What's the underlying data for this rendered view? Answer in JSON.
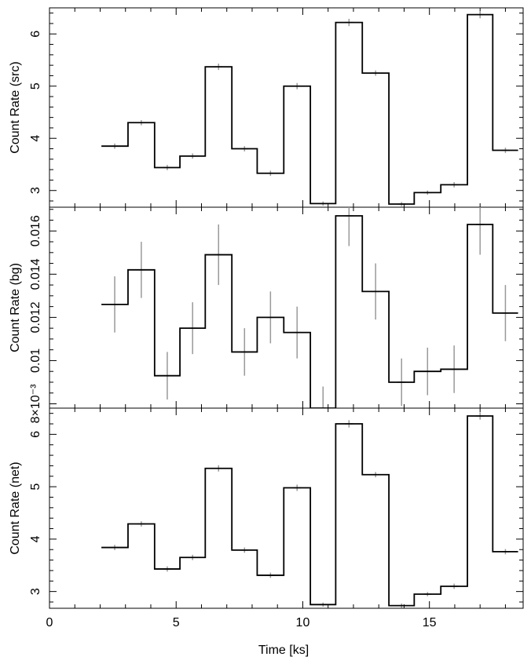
{
  "chart_data": [
    {
      "type": "line",
      "step": true,
      "ylabel": "Count Rate (src)",
      "ylim": [
        2.68,
        6.5
      ],
      "yticks": [
        3,
        4,
        5,
        6
      ],
      "ytick_labels": [
        "3",
        "4",
        "5",
        "6"
      ],
      "bin_edges": [
        2.05,
        3.1,
        4.15,
        5.15,
        6.15,
        7.2,
        8.2,
        9.25,
        10.3,
        11.3,
        12.35,
        13.4,
        14.4,
        15.45,
        16.5,
        17.5,
        18.5
      ],
      "values": [
        3.85,
        4.3,
        3.44,
        3.66,
        5.37,
        3.8,
        3.33,
        5.0,
        2.75,
        6.22,
        5.25,
        2.74,
        2.96,
        3.11,
        6.37,
        3.77
      ],
      "errors": [
        0.05,
        0.05,
        0.05,
        0.05,
        0.06,
        0.05,
        0.05,
        0.06,
        0.04,
        0.07,
        0.05,
        0.04,
        0.04,
        0.05,
        0.07,
        0.05
      ]
    },
    {
      "type": "line",
      "step": true,
      "ylabel": "Count Rate (bg)",
      "ylim": [
        0.0078,
        0.0171
      ],
      "yticks": [
        0.008,
        0.01,
        0.012,
        0.014,
        0.016
      ],
      "ytick_labels": [
        "8×10⁻³",
        "0.01",
        "0.012",
        "0.014",
        "0.016"
      ],
      "bin_edges": [
        2.05,
        3.1,
        4.15,
        5.15,
        6.15,
        7.2,
        8.2,
        9.25,
        10.3,
        11.3,
        12.35,
        13.4,
        14.4,
        15.45,
        16.5,
        17.5,
        18.5
      ],
      "values": [
        0.0126,
        0.0142,
        0.0093,
        0.0115,
        0.0149,
        0.0104,
        0.012,
        0.0113,
        0.0078,
        0.0167,
        0.0132,
        0.009,
        0.0095,
        0.0096,
        0.0163,
        0.0122
      ],
      "errors": [
        0.0013,
        0.0013,
        0.0011,
        0.0012,
        0.0014,
        0.0011,
        0.0012,
        0.0012,
        0.001,
        0.0014,
        0.0013,
        0.0011,
        0.0011,
        0.0011,
        0.0014,
        0.0013
      ]
    },
    {
      "type": "line",
      "step": true,
      "ylabel": "Count Rate (net)",
      "xlabel": "Time [ks]",
      "xlim": [
        0,
        18.7
      ],
      "xticks": [
        0,
        5,
        10,
        15
      ],
      "xtick_labels": [
        "0",
        "5",
        "10",
        "15"
      ],
      "ylim": [
        2.68,
        6.5
      ],
      "yticks": [
        3,
        4,
        5,
        6
      ],
      "ytick_labels": [
        "3",
        "4",
        "5",
        "6"
      ],
      "bin_edges": [
        2.05,
        3.1,
        4.15,
        5.15,
        6.15,
        7.2,
        8.2,
        9.25,
        10.3,
        11.3,
        12.35,
        13.4,
        14.4,
        15.45,
        16.5,
        17.5,
        18.5
      ],
      "values": [
        3.84,
        4.29,
        3.43,
        3.65,
        5.35,
        3.79,
        3.31,
        4.98,
        2.75,
        6.2,
        5.23,
        2.73,
        2.95,
        3.1,
        6.35,
        3.76
      ],
      "errors": [
        0.05,
        0.05,
        0.05,
        0.05,
        0.06,
        0.05,
        0.05,
        0.06,
        0.04,
        0.07,
        0.05,
        0.04,
        0.04,
        0.05,
        0.07,
        0.05
      ]
    }
  ],
  "colors": {
    "step_line": "#000000",
    "error_bars": "#999999",
    "axes": "#000000"
  }
}
